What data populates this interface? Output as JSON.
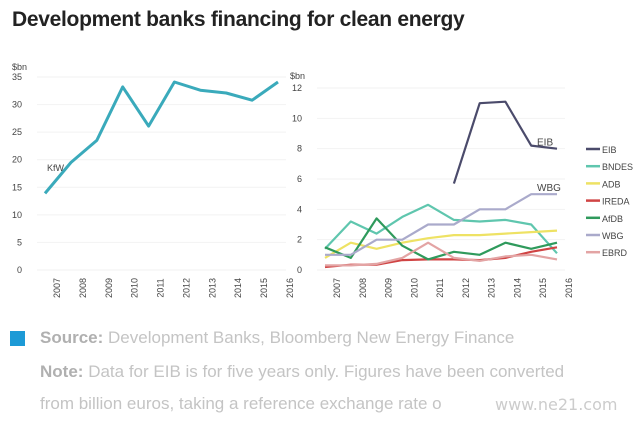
{
  "title": "Development banks financing for clean energy",
  "footer": {
    "source_label": "Source:",
    "source_text": "Development Banks, Bloomberg New Energy Finance",
    "note_label": "Note:",
    "note_text_1": "Data for EIB is for five years only. Figures have been converted",
    "note_text_2": "from billion euros, taking a reference exchange rate o",
    "accent": "#1d9ad6"
  },
  "watermark": "www.ne21.com",
  "chart_data": [
    {
      "type": "line",
      "title": "",
      "ylabel": "$bn",
      "ylim": [
        0,
        35
      ],
      "yticks": [
        "0",
        "5",
        "10",
        "15",
        "20",
        "25",
        "30",
        "35"
      ],
      "categories": [
        "2007",
        "2008",
        "2009",
        "2010",
        "2011",
        "2012",
        "2013",
        "2014",
        "2015",
        "2016"
      ],
      "series": [
        {
          "name": "KfW",
          "label": "KfW",
          "color": "#3aaabb",
          "values": [
            13.9,
            19.5,
            23.5,
            33.2,
            26.1,
            34.1,
            32.6,
            32.1,
            30.8,
            34.1
          ]
        }
      ]
    },
    {
      "type": "line",
      "ylabel": "$bn",
      "ylim": [
        0,
        12
      ],
      "yticks": [
        "0",
        "2",
        "4",
        "6",
        "8",
        "10",
        "12"
      ],
      "categories": [
        "2007",
        "2008",
        "2009",
        "2010",
        "2011",
        "2012",
        "2013",
        "2014",
        "2015",
        "2016"
      ],
      "legend": "right",
      "series": [
        {
          "name": "EIB",
          "color": "#4b4b6b",
          "values": [
            null,
            null,
            null,
            null,
            null,
            5.7,
            11.0,
            11.1,
            8.2,
            8.0
          ],
          "label": "EIB"
        },
        {
          "name": "BNDES",
          "color": "#5fc6ae",
          "values": [
            1.4,
            3.2,
            2.4,
            3.5,
            4.3,
            3.3,
            3.2,
            3.3,
            3.0,
            1.1
          ]
        },
        {
          "name": "ADB",
          "color": "#eee264",
          "values": [
            0.8,
            1.8,
            1.4,
            1.8,
            2.1,
            2.3,
            2.3,
            2.4,
            2.5,
            2.6
          ]
        },
        {
          "name": "IREDA",
          "color": "#d04444",
          "values": [
            0.2,
            0.35,
            0.35,
            0.65,
            0.7,
            0.7,
            0.65,
            0.8,
            1.2,
            1.5
          ]
        },
        {
          "name": "AfDB",
          "color": "#2f9a5c",
          "values": [
            1.5,
            0.8,
            3.4,
            1.6,
            0.7,
            1.2,
            1.0,
            1.8,
            1.4,
            1.8
          ]
        },
        {
          "name": "WBG",
          "color": "#aaaacb",
          "values": [
            1.0,
            1.0,
            2.0,
            2.0,
            3.0,
            3.0,
            4.0,
            4.0,
            5.0,
            5.0
          ],
          "label": "WBG"
        },
        {
          "name": "EBRD",
          "color": "#e3a4a4",
          "values": [
            0.3,
            0.3,
            0.4,
            0.8,
            1.8,
            0.8,
            0.6,
            0.9,
            1.0,
            0.7
          ]
        }
      ]
    }
  ]
}
